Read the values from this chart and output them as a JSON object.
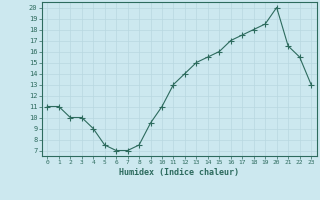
{
  "x": [
    0,
    1,
    2,
    3,
    4,
    5,
    6,
    7,
    8,
    9,
    10,
    11,
    12,
    13,
    14,
    15,
    16,
    17,
    18,
    19,
    20,
    21,
    22,
    23
  ],
  "y": [
    11,
    11,
    10,
    10,
    9,
    7.5,
    7,
    7,
    7.5,
    9.5,
    11,
    13,
    14,
    15,
    15.5,
    16,
    17,
    17.5,
    18,
    18.5,
    20,
    16.5,
    15.5,
    13
  ],
  "line_color": "#2d6b5e",
  "marker": "+",
  "marker_size": 4,
  "bg_color": "#cce8ef",
  "grid_color": "#b8d8e0",
  "xlabel": "Humidex (Indice chaleur)",
  "xlim": [
    -0.5,
    23.5
  ],
  "ylim": [
    6.5,
    20.5
  ],
  "yticks": [
    7,
    8,
    9,
    10,
    11,
    12,
    13,
    14,
    15,
    16,
    17,
    18,
    19,
    20
  ],
  "xticks": [
    0,
    1,
    2,
    3,
    4,
    5,
    6,
    7,
    8,
    9,
    10,
    11,
    12,
    13,
    14,
    15,
    16,
    17,
    18,
    19,
    20,
    21,
    22,
    23
  ]
}
